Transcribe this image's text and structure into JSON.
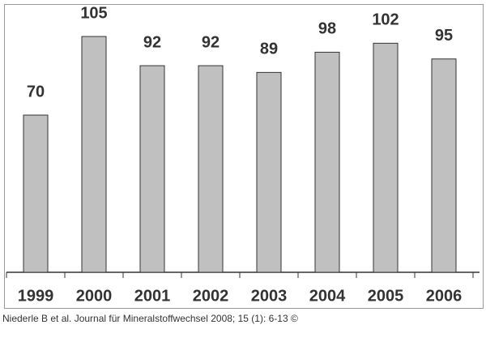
{
  "chart_data": {
    "type": "bar",
    "categories": [
      "1999",
      "2000",
      "2001",
      "2002",
      "2003",
      "2004",
      "2005",
      "2006"
    ],
    "values": [
      70,
      105,
      92,
      92,
      89,
      98,
      102,
      95
    ],
    "color": "#c0c0c0",
    "ylim": [
      0,
      118
    ]
  },
  "source": "Niederle B et al. Journal für Mineralstoffwechsel 2008; 15 (1): 6-13 ©"
}
